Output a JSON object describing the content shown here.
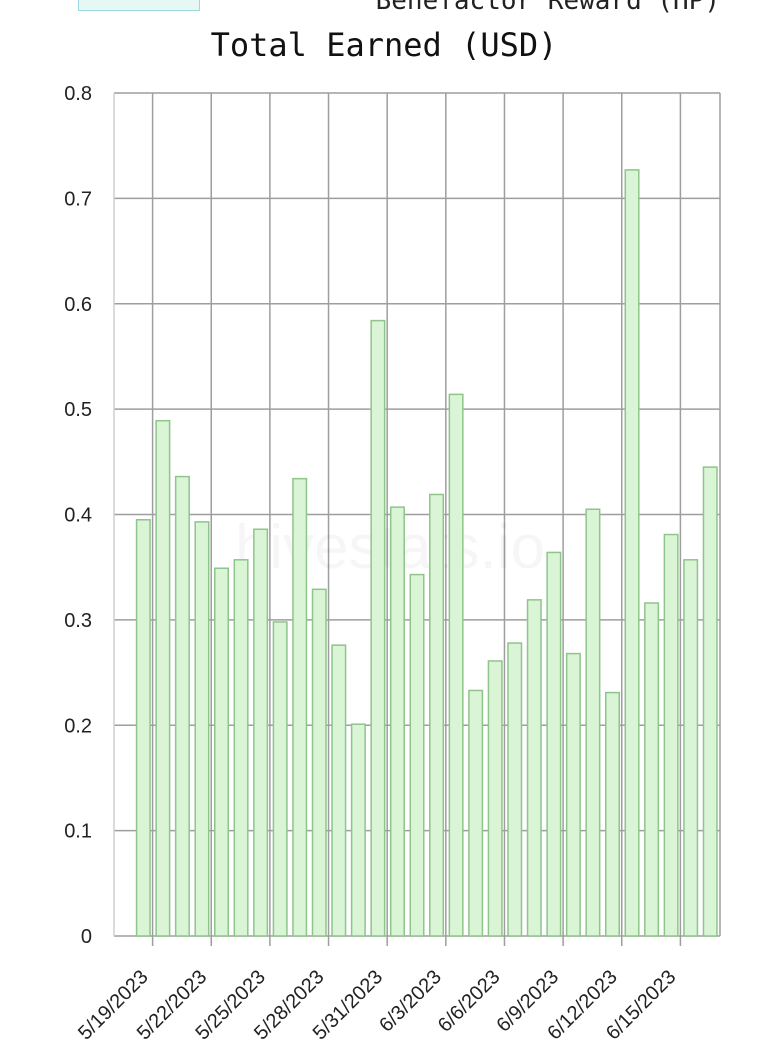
{
  "legend": {
    "label": "Benefactor Reward (HP)",
    "swatch_color": "#e6f8f4"
  },
  "watermark": "hivestats.io",
  "chart_data": {
    "type": "bar",
    "title": "Total Earned (USD)",
    "xlabel": "",
    "ylabel": "",
    "ylim": [
      0,
      0.8
    ],
    "yticks": [
      "0",
      "0.1",
      "0.2",
      "0.3",
      "0.4",
      "0.5",
      "0.6",
      "0.7",
      "0.8"
    ],
    "xtick_labels": [
      "5/19/2023",
      "5/22/2023",
      "5/25/2023",
      "5/28/2023",
      "5/31/2023",
      "6/3/2023",
      "6/6/2023",
      "6/9/2023",
      "6/12/2023",
      "6/15/2023"
    ],
    "categories": [
      "5/18/2023",
      "5/19/2023",
      "5/20/2023",
      "5/21/2023",
      "5/22/2023",
      "5/23/2023",
      "5/24/2023",
      "5/25/2023",
      "5/26/2023",
      "5/27/2023",
      "5/28/2023",
      "5/29/2023",
      "5/30/2023",
      "5/31/2023",
      "6/1/2023",
      "6/2/2023",
      "6/3/2023",
      "6/4/2023",
      "6/5/2023",
      "6/6/2023",
      "6/7/2023",
      "6/8/2023",
      "6/9/2023",
      "6/10/2023",
      "6/11/2023",
      "6/12/2023",
      "6/13/2023",
      "6/14/2023",
      "6/15/2023",
      "6/16/2023",
      "6/17/2023"
    ],
    "values": [
      0,
      0.395,
      0.489,
      0.436,
      0.393,
      0.349,
      0.357,
      0.386,
      0.298,
      0.434,
      0.329,
      0.276,
      0.201,
      0.584,
      0.407,
      0.343,
      0.419,
      0.514,
      0.233,
      0.261,
      0.278,
      0.319,
      0.364,
      0.268,
      0.405,
      0.231,
      0.727,
      0.316,
      0.381,
      0.357,
      0.445
    ],
    "bar_fill": "#d9f5d6",
    "bar_stroke": "#8fc48b",
    "grid": true,
    "grid_color": "#9e9e9e"
  }
}
